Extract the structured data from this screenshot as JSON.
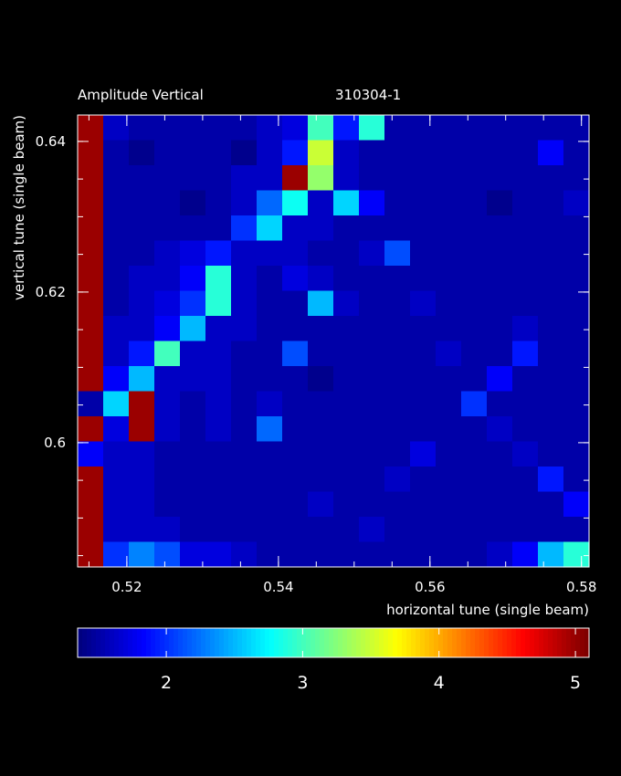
{
  "chart_data": {
    "type": "heatmap",
    "title_left": "Amplitude Vertical",
    "title_right": "310304-1",
    "xlabel": "horizontal tune (single beam)",
    "ylabel": "vertical tune (single beam)",
    "x_range": [
      0.5135,
      0.581
    ],
    "y_range": [
      0.5835,
      0.6435
    ],
    "x_ticks": [
      0.52,
      0.54,
      0.56,
      0.58
    ],
    "x_tick_labels": [
      "0.52",
      "0.54",
      "0.56",
      "0.58"
    ],
    "y_ticks": [
      0.6,
      0.62,
      0.64
    ],
    "y_tick_labels": [
      "0.6",
      "0.62",
      "0.64"
    ],
    "x_minor_step": 0.005,
    "y_minor_step": 0.005,
    "colormap": "jet",
    "colorbar_range": [
      1.35,
      5.1
    ],
    "colorbar_ticks": [
      2,
      3,
      4,
      5
    ],
    "colorbar_tick_labels": [
      "2",
      "3",
      "4",
      "5"
    ],
    "cols": 20,
    "rows": 18,
    "row_order": "top-to-bottom",
    "values": [
      [
        5,
        1.6,
        1.5,
        1.5,
        1.5,
        1.5,
        1.5,
        1.6,
        1.7,
        3.0,
        1.9,
        2.9,
        1.5,
        1.5,
        1.5,
        1.5,
        1.5,
        1.5,
        1.5,
        1.5
      ],
      [
        5,
        1.5,
        1.4,
        1.5,
        1.5,
        1.5,
        1.4,
        1.6,
        1.9,
        3.5,
        1.6,
        1.5,
        1.5,
        1.5,
        1.5,
        1.5,
        1.5,
        1.5,
        1.8,
        1.5
      ],
      [
        5,
        1.5,
        1.5,
        1.5,
        1.5,
        1.5,
        1.6,
        1.6,
        5.0,
        3.3,
        1.6,
        1.5,
        1.5,
        1.5,
        1.5,
        1.5,
        1.5,
        1.5,
        1.5,
        1.5
      ],
      [
        5,
        1.5,
        1.5,
        1.5,
        1.4,
        1.5,
        1.6,
        2.2,
        2.8,
        1.6,
        2.6,
        1.8,
        1.5,
        1.5,
        1.5,
        1.5,
        1.4,
        1.5,
        1.5,
        1.6
      ],
      [
        5,
        1.5,
        1.5,
        1.5,
        1.5,
        1.5,
        2.0,
        2.6,
        1.6,
        1.6,
        1.5,
        1.5,
        1.5,
        1.5,
        1.5,
        1.5,
        1.5,
        1.5,
        1.5,
        1.5
      ],
      [
        5,
        1.5,
        1.5,
        1.6,
        1.7,
        1.9,
        1.6,
        1.6,
        1.6,
        1.5,
        1.5,
        1.6,
        2.1,
        1.5,
        1.5,
        1.5,
        1.5,
        1.5,
        1.5,
        1.5
      ],
      [
        5,
        1.5,
        1.6,
        1.6,
        1.8,
        2.9,
        1.6,
        1.5,
        1.7,
        1.6,
        1.5,
        1.5,
        1.5,
        1.5,
        1.5,
        1.5,
        1.5,
        1.5,
        1.5,
        1.5
      ],
      [
        5,
        1.5,
        1.6,
        1.7,
        2.0,
        2.9,
        1.6,
        1.5,
        1.5,
        2.5,
        1.6,
        1.5,
        1.5,
        1.6,
        1.5,
        1.5,
        1.5,
        1.5,
        1.5,
        1.5
      ],
      [
        5,
        1.6,
        1.6,
        1.8,
        2.5,
        1.6,
        1.6,
        1.5,
        1.5,
        1.5,
        1.5,
        1.5,
        1.5,
        1.5,
        1.5,
        1.5,
        1.5,
        1.6,
        1.5,
        1.5
      ],
      [
        5,
        1.6,
        1.9,
        3.0,
        1.6,
        1.6,
        1.5,
        1.5,
        2.1,
        1.5,
        1.5,
        1.5,
        1.5,
        1.5,
        1.6,
        1.5,
        1.5,
        1.9,
        1.5,
        1.5
      ],
      [
        5,
        1.8,
        2.5,
        1.6,
        1.6,
        1.6,
        1.5,
        1.5,
        1.5,
        1.4,
        1.5,
        1.5,
        1.5,
        1.5,
        1.5,
        1.5,
        1.8,
        1.5,
        1.5,
        1.5
      ],
      [
        1.5,
        2.6,
        5.0,
        1.6,
        1.5,
        1.6,
        1.5,
        1.6,
        1.5,
        1.5,
        1.5,
        1.5,
        1.5,
        1.5,
        1.5,
        2.0,
        1.5,
        1.5,
        1.5,
        1.5
      ],
      [
        5,
        1.7,
        5.0,
        1.6,
        1.5,
        1.6,
        1.5,
        2.2,
        1.5,
        1.5,
        1.5,
        1.5,
        1.5,
        1.5,
        1.5,
        1.5,
        1.6,
        1.5,
        1.5,
        1.5
      ],
      [
        1.8,
        1.6,
        1.6,
        1.5,
        1.5,
        1.5,
        1.5,
        1.5,
        1.5,
        1.5,
        1.5,
        1.5,
        1.5,
        1.7,
        1.5,
        1.5,
        1.5,
        1.6,
        1.5,
        1.5
      ],
      [
        5,
        1.6,
        1.6,
        1.5,
        1.5,
        1.5,
        1.5,
        1.5,
        1.5,
        1.5,
        1.5,
        1.5,
        1.6,
        1.5,
        1.5,
        1.5,
        1.5,
        1.5,
        1.9,
        1.5
      ],
      [
        5,
        1.6,
        1.6,
        1.5,
        1.5,
        1.5,
        1.5,
        1.5,
        1.5,
        1.6,
        1.5,
        1.5,
        1.5,
        1.5,
        1.5,
        1.5,
        1.5,
        1.5,
        1.5,
        1.8
      ],
      [
        5,
        1.6,
        1.6,
        1.6,
        1.5,
        1.5,
        1.5,
        1.5,
        1.5,
        1.5,
        1.5,
        1.6,
        1.5,
        1.5,
        1.5,
        1.5,
        1.5,
        1.5,
        1.5,
        1.5
      ],
      [
        5,
        2.0,
        2.3,
        2.1,
        1.7,
        1.7,
        1.6,
        1.5,
        1.5,
        1.5,
        1.5,
        1.5,
        1.5,
        1.5,
        1.5,
        1.5,
        1.6,
        1.8,
        2.5,
        2.9
      ]
    ]
  }
}
